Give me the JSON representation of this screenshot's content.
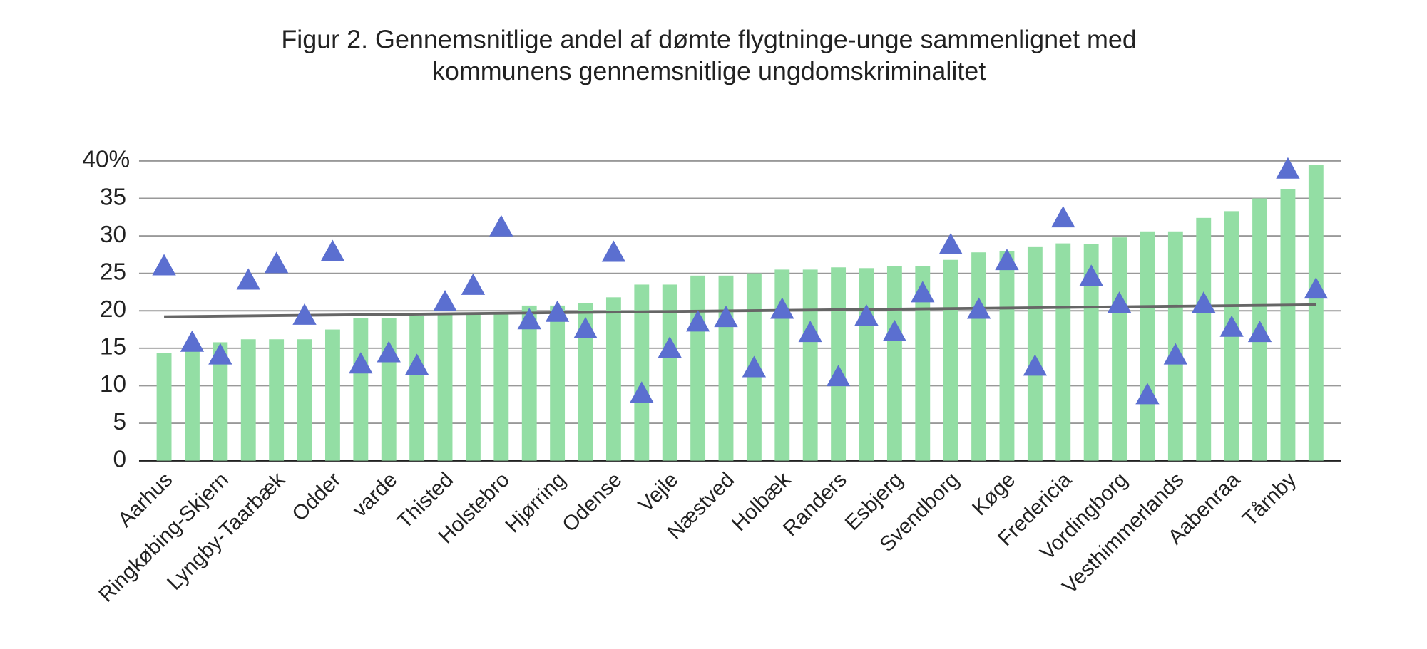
{
  "chart_data": {
    "type": "bar",
    "title": [
      "Figur 2. Gennemsnitlige andel af dømte flygtninge-unge sammenlignet med",
      "kommunens gennemsnitlige ungdomskriminalitet"
    ],
    "categories": [
      "Aarhus",
      null,
      "Ringkøbing-Skjern",
      null,
      "Lyngby-Taarbæk",
      null,
      "Odder",
      null,
      "varde",
      null,
      "Thisted",
      null,
      "Holstebro",
      null,
      "Hjørring",
      null,
      "Odense",
      null,
      "Vejle",
      null,
      "Næstved",
      null,
      "Holbæk",
      null,
      "Randers",
      null,
      "Esbjerg",
      null,
      "Svendborg",
      null,
      "Køge",
      null,
      "Fredericia",
      null,
      "Vordingborg",
      null,
      "Vesthimmerlands",
      null,
      "Aabenraa",
      null,
      "Tårnby",
      null
    ],
    "series": [
      {
        "type": "bar",
        "color": "#93dea4",
        "values": [
          14.4,
          15,
          15.8,
          16.2,
          16.2,
          16.2,
          17.5,
          19,
          19,
          19.3,
          19.5,
          19.5,
          19.5,
          20.7,
          20.7,
          21,
          21.8,
          23.5,
          23.5,
          24.7,
          24.7,
          25,
          25.5,
          25.5,
          25.8,
          25.7,
          26,
          26,
          26.8,
          27.8,
          28,
          28.5,
          29,
          28.9,
          29.8,
          30.6,
          30.6,
          32.4,
          33.3,
          35,
          36.2,
          39.5
        ]
      },
      {
        "type": "marker",
        "color": "#5b6fd0",
        "values": [
          26,
          15.8,
          14.1,
          24.1,
          26.3,
          19.4,
          27.9,
          12.9,
          14.4,
          12.7,
          21.2,
          23.4,
          31.2,
          18.8,
          19.8,
          17.6,
          27.8,
          9,
          15,
          18.5,
          19.1,
          12.4,
          20.2,
          17.1,
          11.2,
          19.3,
          17.2,
          22.4,
          28.8,
          20.2,
          26.7,
          12.6,
          32.4,
          24.6,
          21,
          8.8,
          14.1,
          21,
          17.8,
          17.1,
          38.9,
          22.9
        ]
      }
    ],
    "trendline": {
      "color": "#666666",
      "start": 19.2,
      "end": 20.8
    },
    "ylim": [
      0,
      40
    ],
    "yticks": [
      0,
      5,
      10,
      15,
      20,
      25,
      30,
      35,
      {
        "value": 40,
        "label": "40%"
      }
    ],
    "grid": true
  }
}
